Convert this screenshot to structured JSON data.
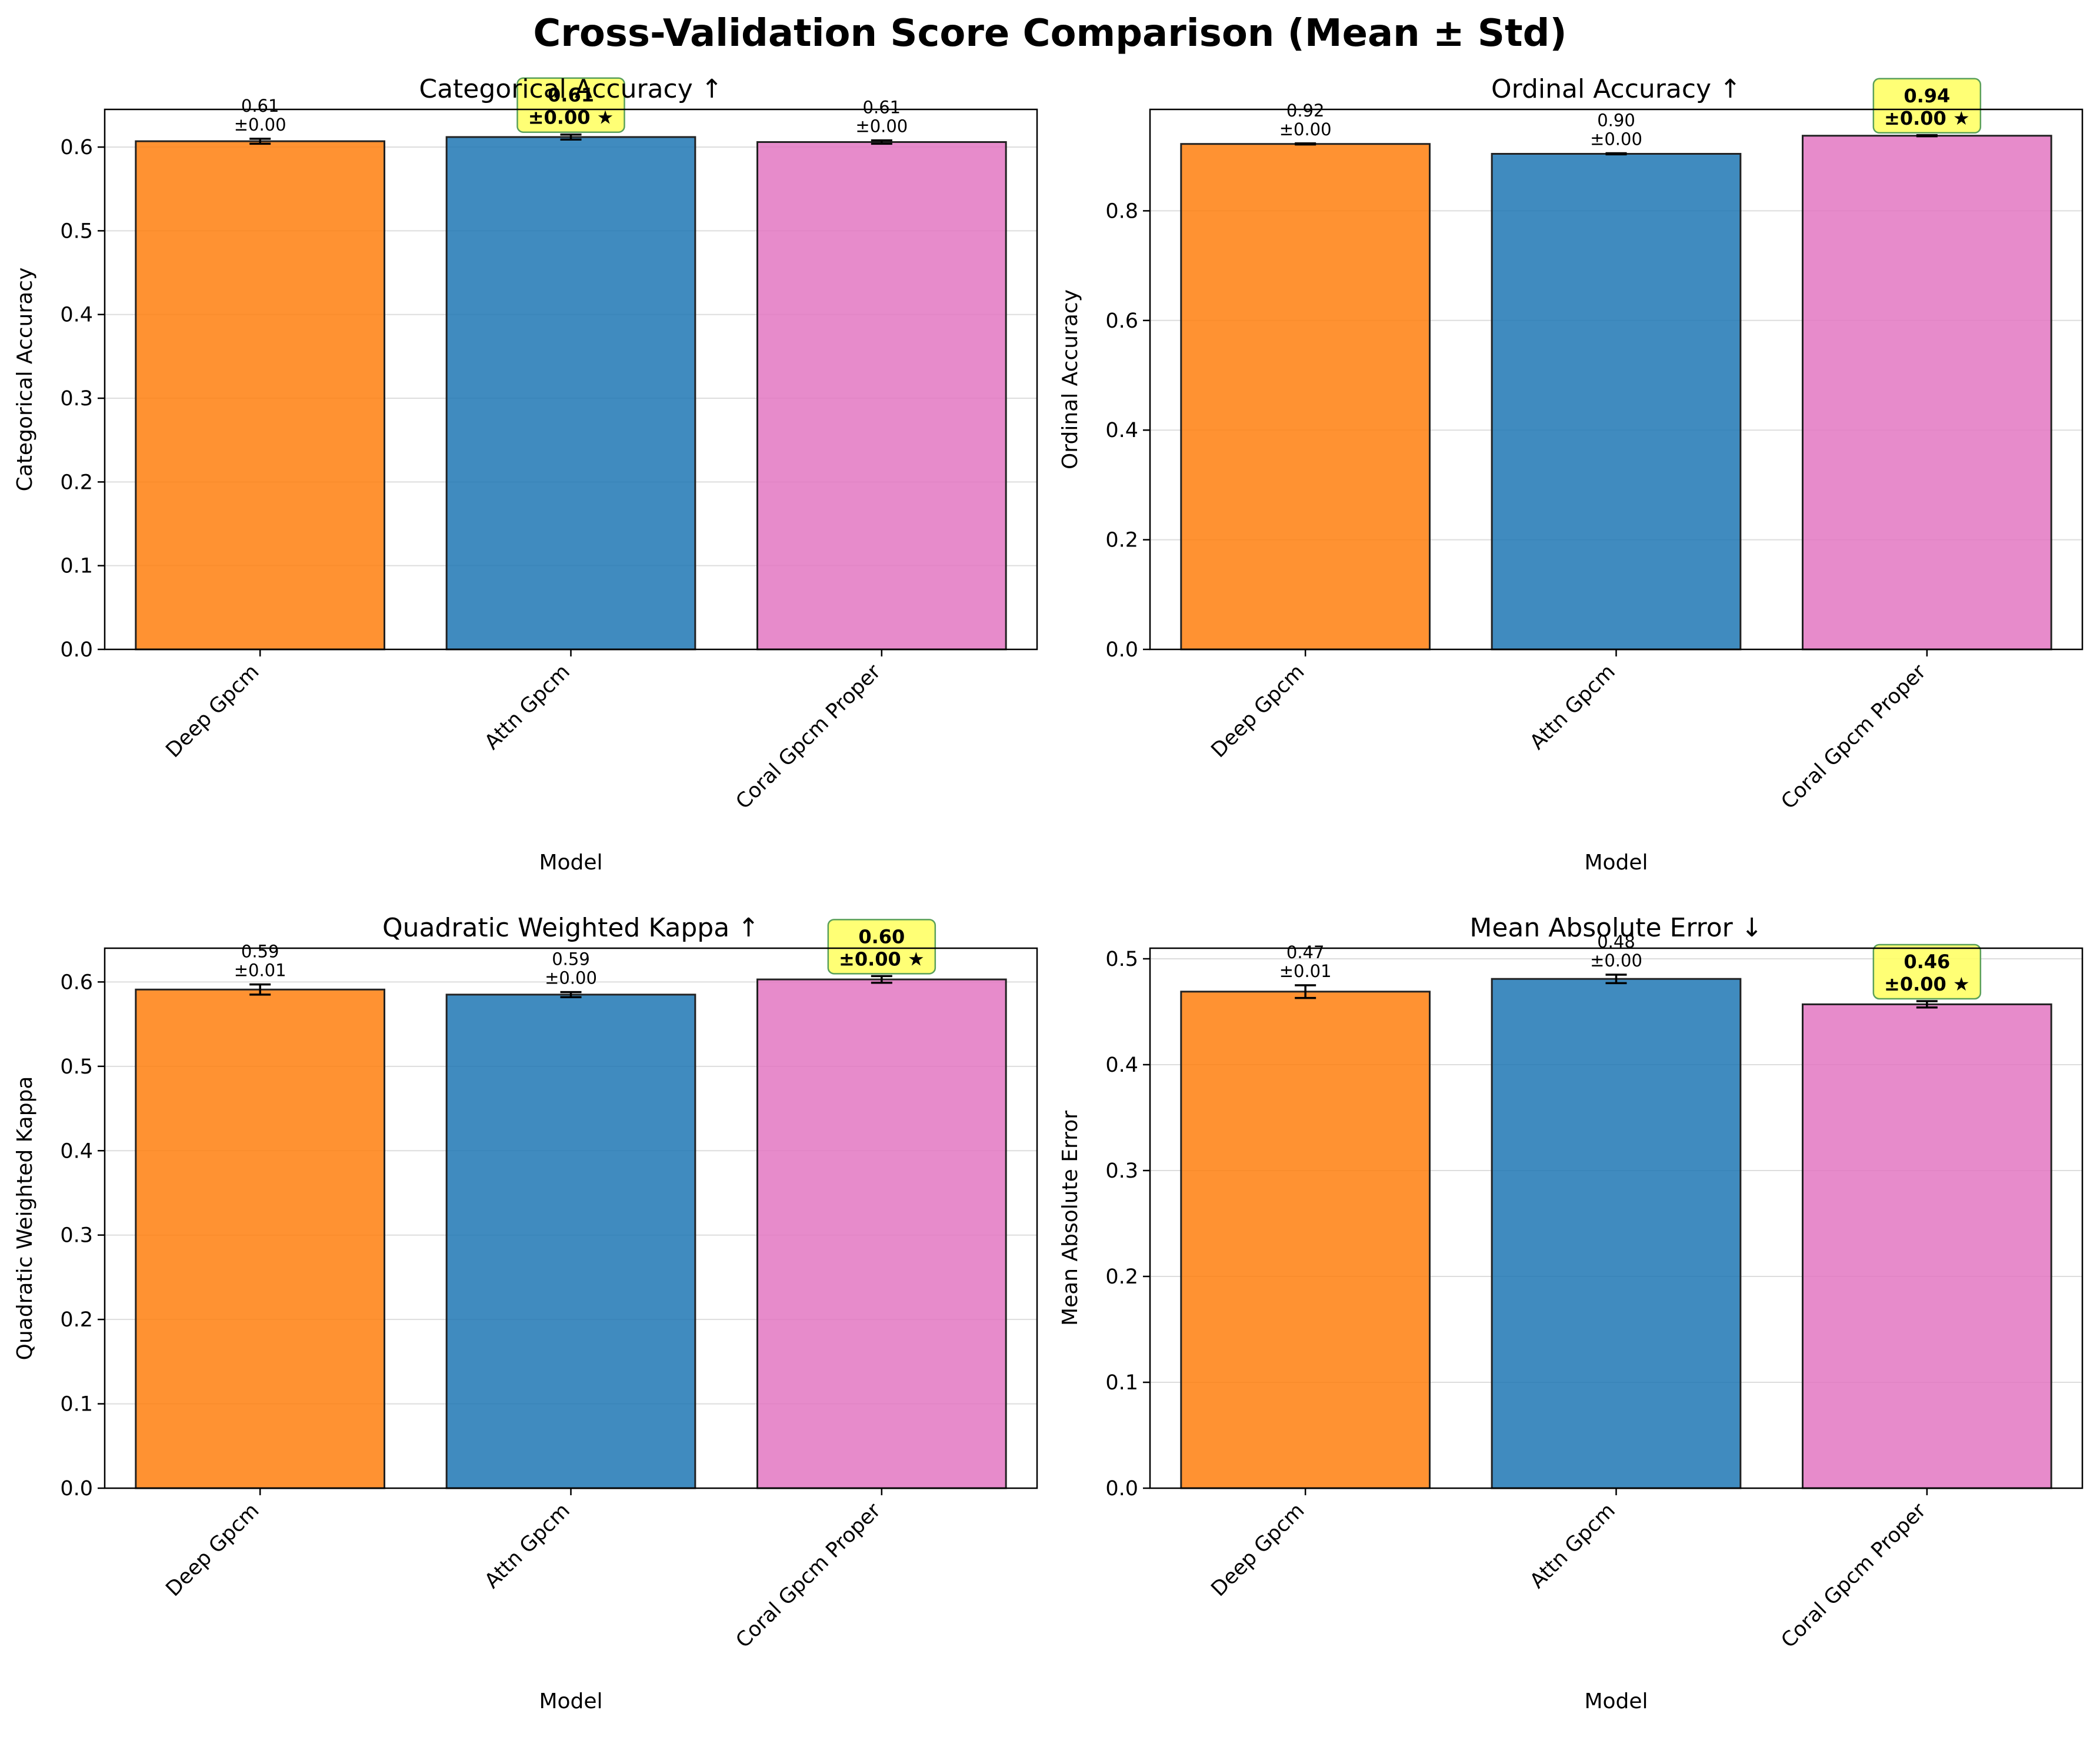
{
  "figure": {
    "title": "Cross-Validation Score Comparison (Mean ± Std)"
  },
  "colors": {
    "models": [
      "#ff7f0e",
      "#1f77b4",
      "#e377c2"
    ],
    "edge": "#222222",
    "highlight_box": "#ffff66",
    "highlight_border": "#5aa05a",
    "grid": "#dddddd"
  },
  "chart_data": [
    {
      "type": "bar",
      "title": "Categorical Accuracy ↑",
      "xlabel": "Model",
      "ylabel": "Categorical Accuracy",
      "categories": [
        "Deep Gpcm",
        "Attn Gpcm",
        "Coral Gpcm Proper"
      ],
      "values": [
        0.607,
        0.612,
        0.606
      ],
      "errors": [
        0.003,
        0.003,
        0.002
      ],
      "value_labels": [
        "0.61",
        "0.61",
        "0.61"
      ],
      "error_labels": [
        "±0.00",
        "±0.00",
        "±0.00"
      ],
      "best_index": 1,
      "ylim": [
        0,
        0.645
      ],
      "yticks": [
        0.0,
        0.1,
        0.2,
        0.3,
        0.4,
        0.5,
        0.6
      ],
      "ytick_labels": [
        "0.0",
        "0.1",
        "0.2",
        "0.3",
        "0.4",
        "0.5",
        "0.6"
      ],
      "grid": "y"
    },
    {
      "type": "bar",
      "title": "Ordinal Accuracy ↑",
      "xlabel": "Model",
      "ylabel": "Ordinal Accuracy",
      "categories": [
        "Deep Gpcm",
        "Attn Gpcm",
        "Coral Gpcm Proper"
      ],
      "values": [
        0.922,
        0.904,
        0.937
      ],
      "errors": [
        0.001,
        0.001,
        0.001
      ],
      "value_labels": [
        "0.92",
        "0.90",
        "0.94"
      ],
      "error_labels": [
        "±0.00",
        "±0.00",
        "±0.00"
      ],
      "best_index": 2,
      "ylim": [
        0,
        0.985
      ],
      "yticks": [
        0.0,
        0.2,
        0.4,
        0.6,
        0.8
      ],
      "ytick_labels": [
        "0.0",
        "0.2",
        "0.4",
        "0.6",
        "0.8"
      ],
      "grid": "y"
    },
    {
      "type": "bar",
      "title": "Quadratic Weighted Kappa ↑",
      "xlabel": "Model",
      "ylabel": "Quadratic Weighted Kappa",
      "categories": [
        "Deep Gpcm",
        "Attn Gpcm",
        "Coral Gpcm Proper"
      ],
      "values": [
        0.591,
        0.585,
        0.603
      ],
      "errors": [
        0.006,
        0.003,
        0.004
      ],
      "value_labels": [
        "0.59",
        "0.59",
        "0.60"
      ],
      "error_labels": [
        "±0.01",
        "±0.00",
        "±0.00"
      ],
      "best_index": 2,
      "ylim": [
        0,
        0.64
      ],
      "yticks": [
        0.0,
        0.1,
        0.2,
        0.3,
        0.4,
        0.5,
        0.6
      ],
      "ytick_labels": [
        "0.0",
        "0.1",
        "0.2",
        "0.3",
        "0.4",
        "0.5",
        "0.6"
      ],
      "grid": "y"
    },
    {
      "type": "bar",
      "title": "Mean Absolute Error ↓",
      "xlabel": "Model",
      "ylabel": "Mean Absolute Error",
      "categories": [
        "Deep Gpcm",
        "Attn Gpcm",
        "Coral Gpcm Proper"
      ],
      "values": [
        0.469,
        0.481,
        0.457
      ],
      "errors": [
        0.006,
        0.004,
        0.003
      ],
      "value_labels": [
        "0.47",
        "0.48",
        "0.46"
      ],
      "error_labels": [
        "±0.01",
        "±0.00",
        "±0.00"
      ],
      "best_index": 2,
      "ylim": [
        0,
        0.51
      ],
      "yticks": [
        0.0,
        0.1,
        0.2,
        0.3,
        0.4,
        0.5
      ],
      "ytick_labels": [
        "0.0",
        "0.1",
        "0.2",
        "0.3",
        "0.4",
        "0.5"
      ],
      "grid": "y"
    }
  ]
}
